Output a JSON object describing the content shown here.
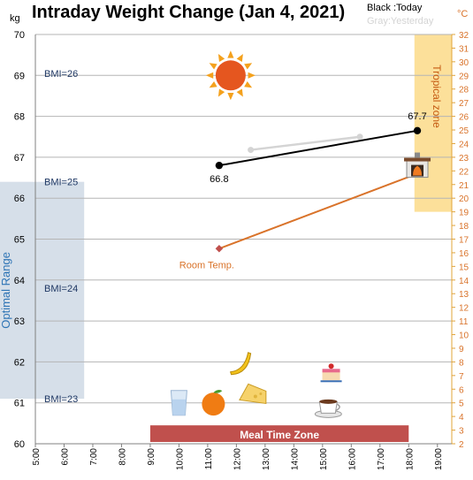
{
  "chart_data": {
    "type": "line",
    "title": "Intraday Weight Change (Jan 4, 2021)",
    "legend": {
      "today": "Black :Today",
      "yesterday": "Gray:Yesterday",
      "placement": "top-right"
    },
    "y_left": {
      "unit": "kg",
      "range": [
        60,
        70
      ],
      "ticks": [
        "60",
        "61",
        "62",
        "63",
        "64",
        "65",
        "66",
        "67",
        "68",
        "69",
        "70"
      ]
    },
    "y_right": {
      "unit": "°C",
      "range": [
        2,
        32
      ],
      "ticks": [
        "2",
        "3",
        "4",
        "5",
        "6",
        "7",
        "8",
        "9",
        "10",
        "11",
        "12",
        "13",
        "14",
        "15",
        "16",
        "17",
        "18",
        "19",
        "20",
        "21",
        "22",
        "23",
        "24",
        "25",
        "26",
        "27",
        "28",
        "29",
        "30",
        "31",
        "32"
      ]
    },
    "x": {
      "range_hours": [
        5,
        19.5
      ],
      "ticks": [
        "5:00",
        "6:00",
        "7:00",
        "8:00",
        "9:00",
        "10:00",
        "11:00",
        "12:00",
        "13:00",
        "14:00",
        "15:00",
        "16:00",
        "17:00",
        "18:00",
        "19:00"
      ]
    },
    "grid": true,
    "series": [
      {
        "key": "today",
        "color": "#000000",
        "axis": "left",
        "points": [
          {
            "x": 11.4,
            "y": 66.8,
            "label": "66.8"
          },
          {
            "x": 18.3,
            "y": 67.65,
            "label": "67.7"
          }
        ]
      },
      {
        "key": "yesterday",
        "color": "#d4d4d4",
        "axis": "left",
        "points": [
          {
            "x": 12.5,
            "y": 67.18
          },
          {
            "x": 16.3,
            "y": 67.5
          }
        ]
      },
      {
        "key": "room_temp",
        "color": "#d9732a",
        "axis": "right",
        "label": "Room Temp.",
        "points": [
          {
            "x": 11.4,
            "y": 16.3
          },
          {
            "x": 18.3,
            "y": 21.8
          }
        ]
      }
    ],
    "bmi_lines": [
      {
        "label": "BMI=26",
        "y": 69.05
      },
      {
        "label": "BMI=25",
        "y": 66.4
      },
      {
        "label": "BMI=24",
        "y": 63.8
      },
      {
        "label": "BMI=23",
        "y": 61.1
      }
    ],
    "zones": {
      "optimal": {
        "label": "Optimal Range",
        "y_from": 61.1,
        "y_to": 66.4,
        "x_from": 5,
        "x_to": 6.7,
        "color": "#d6dfe9"
      },
      "tropical": {
        "label": "Tropical zone",
        "temp_from": 19,
        "temp_to": 32,
        "x_from": 18.2,
        "x_to": 19.5,
        "color": "#fce09a"
      },
      "meal_time": {
        "label": "Meal Time Zone",
        "x_from": 9,
        "x_to": 18,
        "y_from": 60,
        "y_to": 60.45,
        "color": "#c0504d"
      }
    },
    "icons": [
      {
        "name": "sun-icon",
        "x": 11.8,
        "y": 69.0
      },
      {
        "name": "fireplace-icon",
        "x": 18.3,
        "y": 66.77
      },
      {
        "name": "banana-icon",
        "x": 12.1,
        "y": 61.97
      },
      {
        "name": "cake-icon",
        "x": 15.3,
        "y": 61.7
      },
      {
        "name": "water-glass-icon",
        "x": 10.0,
        "y": 61.0
      },
      {
        "name": "orange-icon",
        "x": 11.2,
        "y": 60.97
      },
      {
        "name": "cheese-icon",
        "x": 12.6,
        "y": 61.2
      },
      {
        "name": "coffee-cup-icon",
        "x": 15.2,
        "y": 60.9
      }
    ]
  }
}
